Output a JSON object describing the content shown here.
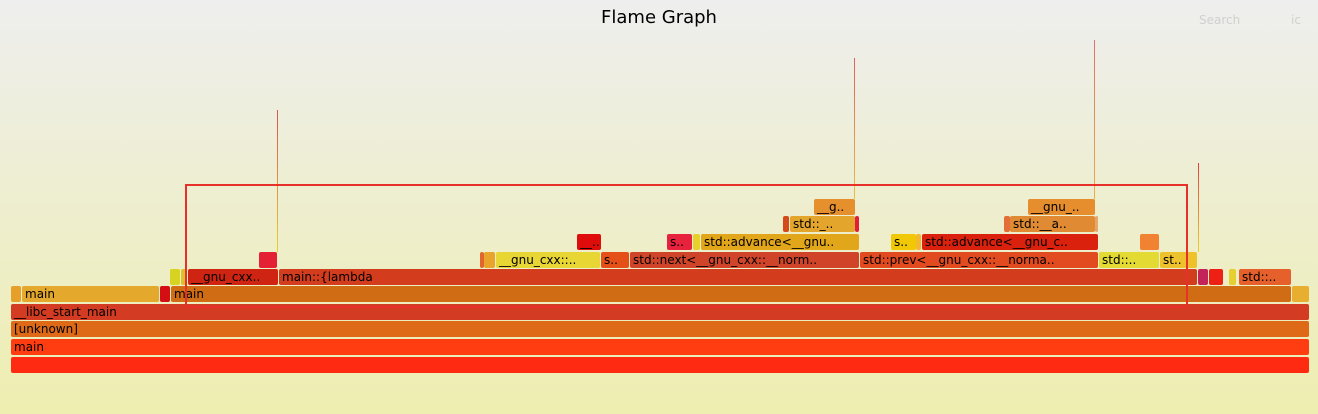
{
  "header": {
    "title": "Flame Graph",
    "search_label": "Search",
    "ic_label": "ic"
  },
  "frames": [
    {
      "label": "",
      "color": "#ff2a12"
    },
    {
      "label": "main",
      "color": "#ff3d10"
    },
    {
      "label": "[unknown]",
      "color": "#de6a18"
    },
    {
      "label": "__libc_start_main",
      "color": "#d33c22"
    },
    {
      "label": "",
      "color": "#e6a02a"
    },
    {
      "label": "main",
      "color": "#e3a82c"
    },
    {
      "label": "",
      "color": "#d40f13"
    },
    {
      "label": "main",
      "color": "#d06c14"
    },
    {
      "label": "",
      "color": "#e8ae30"
    },
    {
      "label": "",
      "color": "#d7d323"
    },
    {
      "label": "",
      "color": "#dfc02a"
    },
    {
      "label": "__gnu_cxx..",
      "color": "#d02412"
    },
    {
      "label": "main::{lambda",
      "color": "#d33d1e"
    },
    {
      "label": "",
      "color": "#c2245a"
    },
    {
      "label": "",
      "color": "#ee1f14"
    },
    {
      "label": "",
      "color": "#e6cf30"
    },
    {
      "label": "std::..",
      "color": "#e5602a"
    },
    {
      "label": "",
      "color": "#e42034"
    },
    {
      "label": "",
      "color": "#e2662c"
    },
    {
      "label": "",
      "color": "#e9a42c"
    },
    {
      "label": "__gnu_cxx::..",
      "color": "#e7d634"
    },
    {
      "label": "s..",
      "color": "#e45018"
    },
    {
      "label": "std::next<__gnu_cxx::__norm..",
      "color": "#d0452a"
    },
    {
      "label": "std::prev<__gnu_cxx::__norma..",
      "color": "#e24a20"
    },
    {
      "label": "std::..",
      "color": "#e3db34"
    },
    {
      "label": "st..",
      "color": "#edc22c"
    },
    {
      "label": "__..",
      "color": "#df0c0c"
    },
    {
      "label": "s..",
      "color": "#e7223c"
    },
    {
      "label": "",
      "color": "#e8d02c"
    },
    {
      "label": "std::advance<__gnu..",
      "color": "#e2a61a"
    },
    {
      "label": "s..",
      "color": "#f0c806"
    },
    {
      "label": "",
      "color": "#f5b630"
    },
    {
      "label": "std::advance<__gnu_c..",
      "color": "#d9210e"
    },
    {
      "label": "",
      "color": "#f08232"
    },
    {
      "label": "",
      "color": "#d44a1a"
    },
    {
      "label": "std::_..",
      "color": "#e4a52c"
    },
    {
      "label": "",
      "color": "#e21d37"
    },
    {
      "label": "",
      "color": "#e46e3a"
    },
    {
      "label": "std::__a..",
      "color": "#e08a34"
    },
    {
      "label": "",
      "color": "#e6a86a"
    },
    {
      "label": "__g..",
      "color": "#e58f2d"
    },
    {
      "label": "__gnu_..",
      "color": "#e68e2e"
    }
  ]
}
